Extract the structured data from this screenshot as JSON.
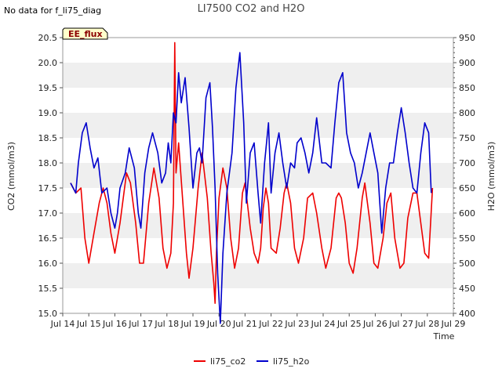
{
  "note": "No data for f_li75_diag",
  "badge": "EE_flux",
  "chart_data": {
    "type": "line",
    "title": "LI7500 CO2 and H2O",
    "xlabel": "Time",
    "ylabel": "CO2 (mmol/m3)",
    "y2label": "H2O (mmol/m3)",
    "xlim": [
      14,
      29
    ],
    "ylim": [
      15.0,
      20.5
    ],
    "y2lim": [
      400,
      950
    ],
    "xticks": [
      {
        "v": 14,
        "label": "Jul 14"
      },
      {
        "v": 15,
        "label": "Jul 15"
      },
      {
        "v": 16,
        "label": "Jul 16"
      },
      {
        "v": 17,
        "label": "Jul 17"
      },
      {
        "v": 18,
        "label": "Jul 18"
      },
      {
        "v": 19,
        "label": "Jul 19"
      },
      {
        "v": 20,
        "label": "Jul 20"
      },
      {
        "v": 21,
        "label": "Jul 21"
      },
      {
        "v": 22,
        "label": "Jul 22"
      },
      {
        "v": 23,
        "label": "Jul 23"
      },
      {
        "v": 24,
        "label": "Jul 24"
      },
      {
        "v": 25,
        "label": "Jul 25"
      },
      {
        "v": 26,
        "label": "Jul 26"
      },
      {
        "v": 27,
        "label": "Jul 27"
      },
      {
        "v": 28,
        "label": "Jul 28"
      },
      {
        "v": 29,
        "label": "Jul 29"
      }
    ],
    "yticks": [
      {
        "v": 15.0,
        "label": "15.0"
      },
      {
        "v": 15.5,
        "label": "15.5"
      },
      {
        "v": 16.0,
        "label": "16.0"
      },
      {
        "v": 16.5,
        "label": "16.5"
      },
      {
        "v": 17.0,
        "label": "17.0"
      },
      {
        "v": 17.5,
        "label": "17.5"
      },
      {
        "v": 18.0,
        "label": "18.0"
      },
      {
        "v": 18.5,
        "label": "18.5"
      },
      {
        "v": 19.0,
        "label": "19.0"
      },
      {
        "v": 19.5,
        "label": "19.5"
      },
      {
        "v": 20.0,
        "label": "20.0"
      },
      {
        "v": 20.5,
        "label": "20.5"
      }
    ],
    "y2ticks": [
      {
        "v": 400,
        "label": "400"
      },
      {
        "v": 450,
        "label": "450"
      },
      {
        "v": 500,
        "label": "500"
      },
      {
        "v": 550,
        "label": "550"
      },
      {
        "v": 600,
        "label": "600"
      },
      {
        "v": 650,
        "label": "650"
      },
      {
        "v": 700,
        "label": "700"
      },
      {
        "v": 750,
        "label": "750"
      },
      {
        "v": 800,
        "label": "800"
      },
      {
        "v": 850,
        "label": "850"
      },
      {
        "v": 900,
        "label": "900"
      },
      {
        "v": 950,
        "label": "950"
      }
    ],
    "bands": [
      [
        15.5,
        16.0
      ],
      [
        16.5,
        17.0
      ],
      [
        17.5,
        18.0
      ],
      [
        18.5,
        19.0
      ],
      [
        19.5,
        20.0
      ]
    ],
    "series": [
      {
        "name": "li75_co2",
        "color": "#ee0000",
        "axis": "left",
        "x": [
          14.3,
          14.5,
          14.7,
          14.85,
          15.0,
          15.2,
          15.4,
          15.55,
          15.7,
          15.85,
          16.0,
          16.2,
          16.45,
          16.6,
          16.8,
          16.95,
          17.1,
          17.3,
          17.5,
          17.7,
          17.85,
          18.0,
          18.15,
          18.25,
          18.3,
          18.35,
          18.45,
          18.6,
          18.75,
          18.85,
          19.0,
          19.2,
          19.35,
          19.55,
          19.7,
          19.8,
          19.85,
          19.9,
          20.0,
          20.15,
          20.3,
          20.45,
          20.6,
          20.75,
          20.9,
          21.0,
          21.2,
          21.35,
          21.5,
          21.6,
          21.7,
          21.8,
          21.9,
          22.0,
          22.2,
          22.35,
          22.5,
          22.6,
          22.75,
          22.9,
          23.05,
          23.25,
          23.4,
          23.6,
          23.75,
          23.95,
          24.1,
          24.3,
          24.5,
          24.6,
          24.7,
          24.85,
          25.0,
          25.15,
          25.3,
          25.5,
          25.6,
          25.8,
          25.95,
          26.1,
          26.3,
          26.45,
          26.6,
          26.75,
          26.95,
          27.1,
          27.25,
          27.45,
          27.6,
          27.75,
          27.9,
          28.05,
          28.2
        ],
        "y": [
          17.6,
          17.4,
          17.5,
          16.5,
          16.0,
          16.6,
          17.2,
          17.5,
          17.2,
          16.6,
          16.2,
          16.8,
          17.8,
          17.6,
          16.8,
          16.0,
          16.0,
          17.2,
          17.9,
          17.3,
          16.3,
          15.9,
          16.2,
          17.2,
          20.4,
          17.8,
          18.4,
          17.3,
          16.2,
          15.7,
          16.3,
          17.5,
          18.2,
          17.3,
          16.2,
          15.6,
          15.2,
          16.2,
          17.3,
          17.9,
          17.5,
          16.5,
          15.9,
          16.3,
          17.4,
          17.6,
          16.7,
          16.2,
          16.0,
          16.3,
          17.1,
          17.5,
          17.2,
          16.3,
          16.2,
          16.7,
          17.4,
          17.6,
          17.2,
          16.3,
          16.0,
          16.5,
          17.3,
          17.4,
          17.0,
          16.3,
          15.9,
          16.3,
          17.3,
          17.4,
          17.3,
          16.8,
          16.0,
          15.8,
          16.3,
          17.3,
          17.6,
          16.8,
          16.0,
          15.9,
          16.5,
          17.2,
          17.4,
          16.5,
          15.9,
          16.0,
          16.9,
          17.4,
          17.4,
          16.8,
          16.2,
          16.1,
          17.5
        ]
      },
      {
        "name": "li75_h2o",
        "color": "#0000cc",
        "axis": "right",
        "x": [
          14.3,
          14.5,
          14.6,
          14.75,
          14.9,
          15.05,
          15.2,
          15.35,
          15.5,
          15.7,
          15.85,
          16.0,
          16.1,
          16.2,
          16.4,
          16.55,
          16.75,
          16.9,
          17.0,
          17.15,
          17.3,
          17.45,
          17.65,
          17.8,
          17.95,
          18.05,
          18.15,
          18.25,
          18.35,
          18.45,
          18.55,
          18.7,
          18.85,
          19.0,
          19.15,
          19.25,
          19.35,
          19.5,
          19.65,
          19.75,
          19.85,
          19.95,
          20.05,
          20.15,
          20.3,
          20.5,
          20.65,
          20.8,
          20.95,
          21.05,
          21.2,
          21.35,
          21.5,
          21.6,
          21.75,
          21.9,
          22.0,
          22.15,
          22.3,
          22.45,
          22.6,
          22.75,
          22.9,
          23.0,
          23.15,
          23.3,
          23.45,
          23.6,
          23.75,
          23.95,
          24.1,
          24.3,
          24.45,
          24.6,
          24.75,
          24.9,
          25.05,
          25.2,
          25.35,
          25.5,
          25.65,
          25.8,
          25.95,
          26.1,
          26.25,
          26.4,
          26.55,
          26.7,
          26.85,
          27.0,
          27.15,
          27.3,
          27.45,
          27.6,
          27.75,
          27.9,
          28.05,
          28.15
        ],
        "y": [
          660,
          640,
          700,
          760,
          780,
          730,
          690,
          710,
          640,
          650,
          600,
          570,
          600,
          650,
          680,
          730,
          690,
          600,
          570,
          680,
          730,
          760,
          720,
          660,
          680,
          740,
          700,
          800,
          780,
          880,
          820,
          870,
          770,
          650,
          720,
          730,
          700,
          830,
          860,
          770,
          650,
          480,
          380,
          520,
          640,
          720,
          850,
          920,
          780,
          620,
          720,
          740,
          640,
          580,
          700,
          780,
          640,
          720,
          760,
          700,
          650,
          700,
          690,
          740,
          750,
          720,
          680,
          720,
          790,
          700,
          700,
          690,
          780,
          860,
          880,
          760,
          720,
          700,
          650,
          680,
          720,
          760,
          720,
          680,
          560,
          650,
          700,
          700,
          760,
          810,
          760,
          700,
          650,
          640,
          720,
          780,
          760,
          640
        ]
      }
    ]
  }
}
